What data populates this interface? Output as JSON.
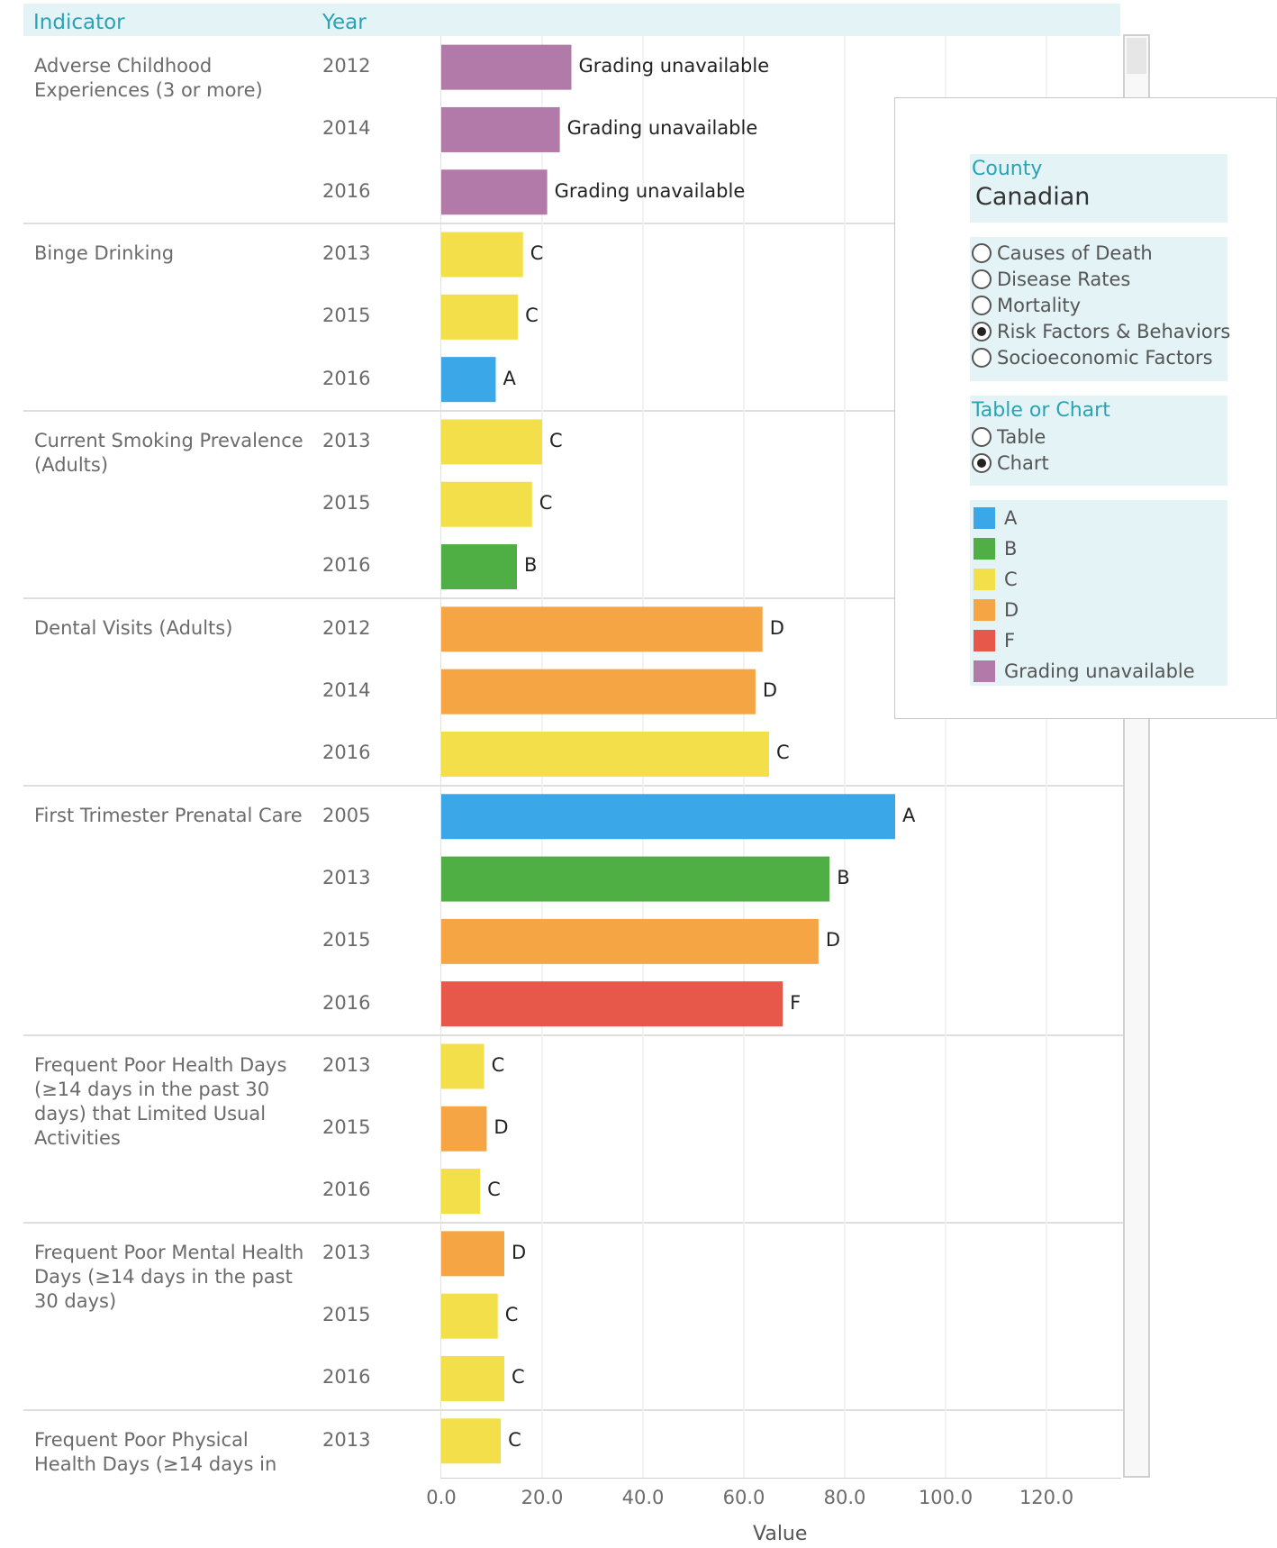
{
  "header": {
    "indicator": "Indicator",
    "year": "Year"
  },
  "colors": {
    "A": "#3aa8e8",
    "B": "#4fae44",
    "C": "#f3df4a",
    "D": "#f6a544",
    "F": "#e8584a",
    "Grading unavailable": "#b27aa8"
  },
  "chart_data": {
    "type": "bar",
    "orientation": "horizontal",
    "xlabel": "Value",
    "xlim": [
      0,
      135
    ],
    "x_ticks": [
      "0.0",
      "20.0",
      "40.0",
      "60.0",
      "80.0",
      "100.0",
      "120.0"
    ],
    "groups": [
      {
        "indicator": "Adverse Childhood\nExperiences (3 or more)",
        "rows": [
          {
            "year": "2012",
            "value": 25.8,
            "grade": "Grading unavailable"
          },
          {
            "year": "2014",
            "value": 23.5,
            "grade": "Grading unavailable"
          },
          {
            "year": "2016",
            "value": 21.0,
            "grade": "Grading unavailable"
          }
        ]
      },
      {
        "indicator": "Binge Drinking",
        "rows": [
          {
            "year": "2013",
            "value": 16.2,
            "grade": "C"
          },
          {
            "year": "2015",
            "value": 15.2,
            "grade": "C"
          },
          {
            "year": "2016",
            "value": 10.8,
            "grade": "A"
          }
        ]
      },
      {
        "indicator": "Current Smoking Prevalence\n(Adults)",
        "rows": [
          {
            "year": "2013",
            "value": 20.0,
            "grade": "C"
          },
          {
            "year": "2015",
            "value": 18.0,
            "grade": "C"
          },
          {
            "year": "2016",
            "value": 15.0,
            "grade": "B"
          }
        ]
      },
      {
        "indicator": "Dental Visits (Adults)",
        "rows": [
          {
            "year": "2012",
            "value": 63.7,
            "grade": "D"
          },
          {
            "year": "2014",
            "value": 62.3,
            "grade": "D"
          },
          {
            "year": "2016",
            "value": 65.0,
            "grade": "C"
          }
        ]
      },
      {
        "indicator": "First Trimester Prenatal Care",
        "rows": [
          {
            "year": "2005",
            "value": 90.0,
            "grade": "A"
          },
          {
            "year": "2013",
            "value": 77.0,
            "grade": "B"
          },
          {
            "year": "2015",
            "value": 74.8,
            "grade": "D"
          },
          {
            "year": "2016",
            "value": 67.7,
            "grade": "F"
          }
        ]
      },
      {
        "indicator": "Frequent Poor Health Days\n(≥14 days in the past 30\ndays) that Limited Usual\nActivities",
        "rows": [
          {
            "year": "2013",
            "value": 8.5,
            "grade": "C"
          },
          {
            "year": "2015",
            "value": 9.0,
            "grade": "D"
          },
          {
            "year": "2016",
            "value": 7.7,
            "grade": "C"
          }
        ]
      },
      {
        "indicator": "Frequent Poor Mental Health\nDays (≥14 days in the past\n30 days)",
        "rows": [
          {
            "year": "2013",
            "value": 12.5,
            "grade": "D"
          },
          {
            "year": "2015",
            "value": 11.2,
            "grade": "C"
          },
          {
            "year": "2016",
            "value": 12.5,
            "grade": "C"
          }
        ]
      },
      {
        "indicator": "Frequent Poor Physical\nHealth Days (≥14 days in",
        "rows": [
          {
            "year": "2013",
            "value": 11.8,
            "grade": "C"
          }
        ]
      }
    ]
  },
  "panel": {
    "county_title": "County",
    "county_value": "Canadian",
    "category_options": [
      {
        "label": "Causes of Death",
        "checked": false
      },
      {
        "label": "Disease Rates",
        "checked": false
      },
      {
        "label": "Mortality",
        "checked": false
      },
      {
        "label": "Risk Factors & Behaviors",
        "checked": true
      },
      {
        "label": "Socioeconomic Factors",
        "checked": false
      }
    ],
    "view_title": "Table or Chart",
    "view_options": [
      {
        "label": "Table",
        "checked": false
      },
      {
        "label": "Chart",
        "checked": true
      }
    ],
    "legend": [
      {
        "label": "A",
        "key": "A"
      },
      {
        "label": "B",
        "key": "B"
      },
      {
        "label": "C",
        "key": "C"
      },
      {
        "label": "D",
        "key": "D"
      },
      {
        "label": "F",
        "key": "F"
      },
      {
        "label": "Grading unavailable",
        "key": "Grading unavailable"
      }
    ]
  }
}
